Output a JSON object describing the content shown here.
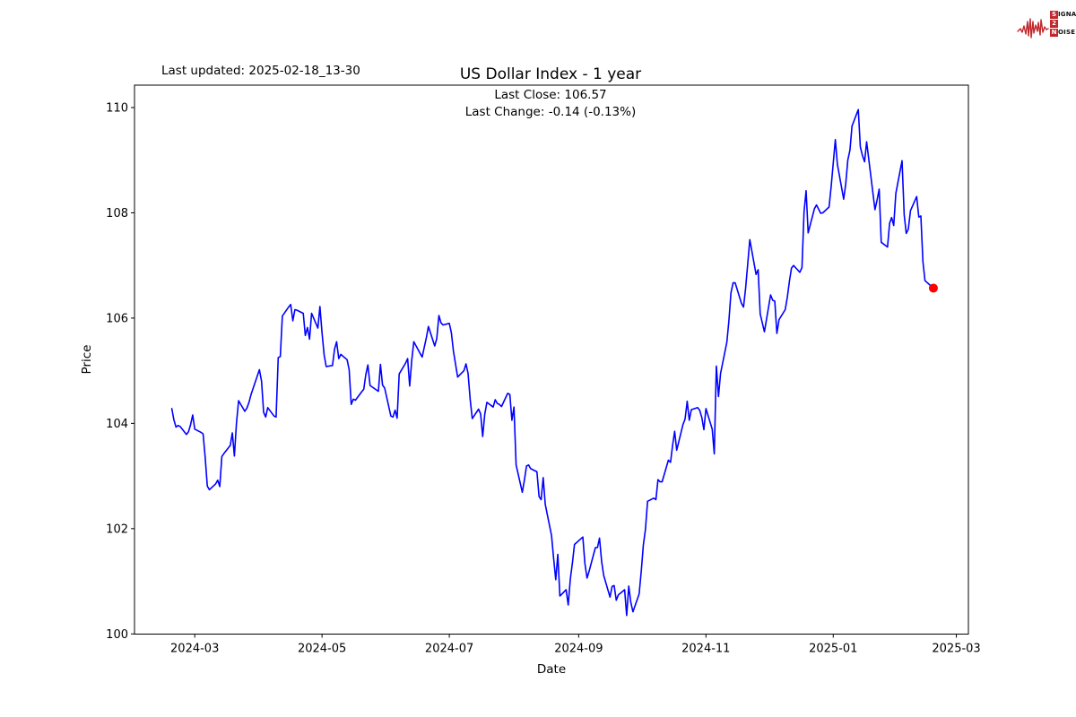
{
  "page": {
    "last_updated_label": "Last updated: 2025-02-18_13-30",
    "title": "US Dollar Index - 1 year",
    "subtitle_close": "Last Close: 106.57",
    "subtitle_change": "Last Change: -0.14 (-0.13%)"
  },
  "logo": {
    "s": "S",
    "ignal": "IGNAL",
    "two": "2",
    "n": "N",
    "oise": "OISE",
    "accent_color": "#c1272d"
  },
  "chart_data": {
    "type": "line",
    "title": "US Dollar Index - 1 year",
    "xlabel": "Date",
    "ylabel": "Price",
    "grid": false,
    "legend": "none",
    "line_color": "#0000ff",
    "last_point_color": "#ff0000",
    "axis_color": "#000000",
    "ylim": [
      100,
      110.43
    ],
    "yticks": [
      100,
      102,
      104,
      106,
      108,
      110
    ],
    "xticks": [
      {
        "label": "2024-03",
        "date": "2024-03-01"
      },
      {
        "label": "2024-05",
        "date": "2024-05-01"
      },
      {
        "label": "2024-07",
        "date": "2024-07-01"
      },
      {
        "label": "2024-09",
        "date": "2024-09-01"
      },
      {
        "label": "2024-11",
        "date": "2024-11-01"
      },
      {
        "label": "2025-01",
        "date": "2025-01-01"
      },
      {
        "label": "2025-03",
        "date": "2025-03-01"
      }
    ],
    "x_range": [
      "2024-02-19",
      "2025-02-18"
    ],
    "last_close": 106.57,
    "last_change": "-0.14 (-0.13%)",
    "series": [
      {
        "name": "US Dollar Index",
        "points": [
          [
            "2024-02-19",
            104.28
          ],
          [
            "2024-02-20",
            104.07
          ],
          [
            "2024-02-21",
            103.93
          ],
          [
            "2024-02-22",
            103.96
          ],
          [
            "2024-02-23",
            103.94
          ],
          [
            "2024-02-26",
            103.79
          ],
          [
            "2024-02-27",
            103.84
          ],
          [
            "2024-02-28",
            103.97
          ],
          [
            "2024-02-29",
            104.16
          ],
          [
            "2024-03-01",
            103.89
          ],
          [
            "2024-03-04",
            103.83
          ],
          [
            "2024-03-05",
            103.8
          ],
          [
            "2024-03-06",
            103.36
          ],
          [
            "2024-03-07",
            102.81
          ],
          [
            "2024-03-08",
            102.74
          ],
          [
            "2024-03-11",
            102.85
          ],
          [
            "2024-03-12",
            102.92
          ],
          [
            "2024-03-13",
            102.8
          ],
          [
            "2024-03-14",
            103.37
          ],
          [
            "2024-03-15",
            103.43
          ],
          [
            "2024-03-18",
            103.58
          ],
          [
            "2024-03-19",
            103.82
          ],
          [
            "2024-03-20",
            103.38
          ],
          [
            "2024-03-21",
            104.0
          ],
          [
            "2024-03-22",
            104.43
          ],
          [
            "2024-03-25",
            104.23
          ],
          [
            "2024-03-26",
            104.29
          ],
          [
            "2024-03-27",
            104.4
          ],
          [
            "2024-03-28",
            104.55
          ],
          [
            "2024-04-01",
            105.02
          ],
          [
            "2024-04-02",
            104.8
          ],
          [
            "2024-04-03",
            104.21
          ],
          [
            "2024-04-04",
            104.12
          ],
          [
            "2024-04-05",
            104.3
          ],
          [
            "2024-04-08",
            104.14
          ],
          [
            "2024-04-09",
            104.12
          ],
          [
            "2024-04-10",
            105.25
          ],
          [
            "2024-04-11",
            105.27
          ],
          [
            "2024-04-12",
            106.04
          ],
          [
            "2024-04-15",
            106.21
          ],
          [
            "2024-04-16",
            106.26
          ],
          [
            "2024-04-17",
            105.95
          ],
          [
            "2024-04-18",
            106.16
          ],
          [
            "2024-04-19",
            106.15
          ],
          [
            "2024-04-22",
            106.09
          ],
          [
            "2024-04-23",
            105.67
          ],
          [
            "2024-04-24",
            105.82
          ],
          [
            "2024-04-25",
            105.6
          ],
          [
            "2024-04-26",
            106.09
          ],
          [
            "2024-04-29",
            105.81
          ],
          [
            "2024-04-30",
            106.22
          ],
          [
            "2024-05-01",
            105.73
          ],
          [
            "2024-05-02",
            105.3
          ],
          [
            "2024-05-03",
            105.08
          ],
          [
            "2024-05-06",
            105.1
          ],
          [
            "2024-05-07",
            105.41
          ],
          [
            "2024-05-08",
            105.55
          ],
          [
            "2024-05-09",
            105.23
          ],
          [
            "2024-05-10",
            105.31
          ],
          [
            "2024-05-13",
            105.21
          ],
          [
            "2024-05-14",
            105.02
          ],
          [
            "2024-05-15",
            104.36
          ],
          [
            "2024-05-16",
            104.46
          ],
          [
            "2024-05-17",
            104.44
          ],
          [
            "2024-05-20",
            104.6
          ],
          [
            "2024-05-21",
            104.65
          ],
          [
            "2024-05-22",
            104.93
          ],
          [
            "2024-05-23",
            105.11
          ],
          [
            "2024-05-24",
            104.72
          ],
          [
            "2024-05-28",
            104.61
          ],
          [
            "2024-05-29",
            105.12
          ],
          [
            "2024-05-30",
            104.73
          ],
          [
            "2024-05-31",
            104.67
          ],
          [
            "2024-06-03",
            104.14
          ],
          [
            "2024-06-04",
            104.12
          ],
          [
            "2024-06-05",
            104.25
          ],
          [
            "2024-06-06",
            104.1
          ],
          [
            "2024-06-07",
            104.94
          ],
          [
            "2024-06-10",
            105.14
          ],
          [
            "2024-06-11",
            105.23
          ],
          [
            "2024-06-12",
            104.71
          ],
          [
            "2024-06-13",
            105.2
          ],
          [
            "2024-06-14",
            105.55
          ],
          [
            "2024-06-17",
            105.33
          ],
          [
            "2024-06-18",
            105.26
          ],
          [
            "2024-06-20",
            105.63
          ],
          [
            "2024-06-21",
            105.84
          ],
          [
            "2024-06-24",
            105.47
          ],
          [
            "2024-06-25",
            105.61
          ],
          [
            "2024-06-26",
            106.05
          ],
          [
            "2024-06-27",
            105.91
          ],
          [
            "2024-06-28",
            105.87
          ],
          [
            "2024-07-01",
            105.9
          ],
          [
            "2024-07-02",
            105.72
          ],
          [
            "2024-07-03",
            105.37
          ],
          [
            "2024-07-05",
            104.88
          ],
          [
            "2024-07-08",
            105.0
          ],
          [
            "2024-07-09",
            105.13
          ],
          [
            "2024-07-10",
            104.95
          ],
          [
            "2024-07-11",
            104.45
          ],
          [
            "2024-07-12",
            104.09
          ],
          [
            "2024-07-15",
            104.27
          ],
          [
            "2024-07-16",
            104.18
          ],
          [
            "2024-07-17",
            103.75
          ],
          [
            "2024-07-18",
            104.17
          ],
          [
            "2024-07-19",
            104.4
          ],
          [
            "2024-07-22",
            104.31
          ],
          [
            "2024-07-23",
            104.45
          ],
          [
            "2024-07-24",
            104.38
          ],
          [
            "2024-07-25",
            104.36
          ],
          [
            "2024-07-26",
            104.32
          ],
          [
            "2024-07-29",
            104.57
          ],
          [
            "2024-07-30",
            104.55
          ],
          [
            "2024-07-31",
            104.06
          ],
          [
            "2024-08-01",
            104.31
          ],
          [
            "2024-08-02",
            103.21
          ],
          [
            "2024-08-05",
            102.69
          ],
          [
            "2024-08-06",
            102.93
          ],
          [
            "2024-08-07",
            103.19
          ],
          [
            "2024-08-08",
            103.21
          ],
          [
            "2024-08-09",
            103.14
          ],
          [
            "2024-08-12",
            103.08
          ],
          [
            "2024-08-13",
            102.61
          ],
          [
            "2024-08-14",
            102.55
          ],
          [
            "2024-08-15",
            102.97
          ],
          [
            "2024-08-16",
            102.46
          ],
          [
            "2024-08-19",
            101.87
          ],
          [
            "2024-08-20",
            101.44
          ],
          [
            "2024-08-21",
            101.03
          ],
          [
            "2024-08-22",
            101.51
          ],
          [
            "2024-08-23",
            100.72
          ],
          [
            "2024-08-26",
            100.84
          ],
          [
            "2024-08-27",
            100.55
          ],
          [
            "2024-08-28",
            101.05
          ],
          [
            "2024-08-29",
            101.35
          ],
          [
            "2024-08-30",
            101.7
          ],
          [
            "2024-09-03",
            101.84
          ],
          [
            "2024-09-04",
            101.34
          ],
          [
            "2024-09-05",
            101.06
          ],
          [
            "2024-09-06",
            101.19
          ],
          [
            "2024-09-09",
            101.64
          ],
          [
            "2024-09-10",
            101.64
          ],
          [
            "2024-09-11",
            101.82
          ],
          [
            "2024-09-12",
            101.37
          ],
          [
            "2024-09-13",
            101.11
          ],
          [
            "2024-09-16",
            100.7
          ],
          [
            "2024-09-17",
            100.9
          ],
          [
            "2024-09-18",
            100.92
          ],
          [
            "2024-09-19",
            100.64
          ],
          [
            "2024-09-20",
            100.74
          ],
          [
            "2024-09-23",
            100.84
          ],
          [
            "2024-09-24",
            100.35
          ],
          [
            "2024-09-25",
            100.91
          ],
          [
            "2024-09-26",
            100.6
          ],
          [
            "2024-09-27",
            100.42
          ],
          [
            "2024-09-30",
            100.76
          ],
          [
            "2024-10-01",
            101.2
          ],
          [
            "2024-10-02",
            101.69
          ],
          [
            "2024-10-03",
            101.98
          ],
          [
            "2024-10-04",
            102.52
          ],
          [
            "2024-10-07",
            102.58
          ],
          [
            "2024-10-08",
            102.55
          ],
          [
            "2024-10-09",
            102.93
          ],
          [
            "2024-10-10",
            102.89
          ],
          [
            "2024-10-11",
            102.89
          ],
          [
            "2024-10-14",
            103.3
          ],
          [
            "2024-10-15",
            103.26
          ],
          [
            "2024-10-16",
            103.58
          ],
          [
            "2024-10-17",
            103.85
          ],
          [
            "2024-10-18",
            103.49
          ],
          [
            "2024-10-21",
            103.98
          ],
          [
            "2024-10-22",
            104.08
          ],
          [
            "2024-10-23",
            104.42
          ],
          [
            "2024-10-24",
            104.06
          ],
          [
            "2024-10-25",
            104.26
          ],
          [
            "2024-10-28",
            104.3
          ],
          [
            "2024-10-29",
            104.25
          ],
          [
            "2024-10-30",
            104.11
          ],
          [
            "2024-10-31",
            103.88
          ],
          [
            "2024-11-01",
            104.28
          ],
          [
            "2024-11-04",
            103.89
          ],
          [
            "2024-11-05",
            103.42
          ],
          [
            "2024-11-06",
            105.09
          ],
          [
            "2024-11-07",
            104.51
          ],
          [
            "2024-11-08",
            104.95
          ],
          [
            "2024-11-11",
            105.54
          ],
          [
            "2024-11-12",
            105.95
          ],
          [
            "2024-11-13",
            106.48
          ],
          [
            "2024-11-14",
            106.67
          ],
          [
            "2024-11-15",
            106.67
          ],
          [
            "2024-11-18",
            106.28
          ],
          [
            "2024-11-19",
            106.21
          ],
          [
            "2024-11-20",
            106.56
          ],
          [
            "2024-11-21",
            107.03
          ],
          [
            "2024-11-22",
            107.49
          ],
          [
            "2024-11-25",
            106.83
          ],
          [
            "2024-11-26",
            106.92
          ],
          [
            "2024-11-27",
            106.08
          ],
          [
            "2024-11-29",
            105.74
          ],
          [
            "2024-12-02",
            106.44
          ],
          [
            "2024-12-03",
            106.34
          ],
          [
            "2024-12-04",
            106.32
          ],
          [
            "2024-12-05",
            105.71
          ],
          [
            "2024-12-06",
            105.97
          ],
          [
            "2024-12-09",
            106.16
          ],
          [
            "2024-12-10",
            106.4
          ],
          [
            "2024-12-11",
            106.7
          ],
          [
            "2024-12-12",
            106.95
          ],
          [
            "2024-12-13",
            107.0
          ],
          [
            "2024-12-16",
            106.87
          ],
          [
            "2024-12-17",
            106.96
          ],
          [
            "2024-12-18",
            108.02
          ],
          [
            "2024-12-19",
            108.42
          ],
          [
            "2024-12-20",
            107.62
          ],
          [
            "2024-12-23",
            108.08
          ],
          [
            "2024-12-24",
            108.15
          ],
          [
            "2024-12-26",
            107.99
          ],
          [
            "2024-12-27",
            108.0
          ],
          [
            "2024-12-30",
            108.11
          ],
          [
            "2024-12-31",
            108.49
          ],
          [
            "2025-01-02",
            109.39
          ],
          [
            "2025-01-03",
            108.92
          ],
          [
            "2025-01-06",
            108.26
          ],
          [
            "2025-01-07",
            108.55
          ],
          [
            "2025-01-08",
            109.0
          ],
          [
            "2025-01-09",
            109.19
          ],
          [
            "2025-01-10",
            109.65
          ],
          [
            "2025-01-13",
            109.96
          ],
          [
            "2025-01-14",
            109.25
          ],
          [
            "2025-01-15",
            109.09
          ],
          [
            "2025-01-16",
            108.97
          ],
          [
            "2025-01-17",
            109.35
          ],
          [
            "2025-01-21",
            108.06
          ],
          [
            "2025-01-22",
            108.24
          ],
          [
            "2025-01-23",
            108.45
          ],
          [
            "2025-01-24",
            107.44
          ],
          [
            "2025-01-27",
            107.35
          ],
          [
            "2025-01-28",
            107.8
          ],
          [
            "2025-01-29",
            107.91
          ],
          [
            "2025-01-30",
            107.76
          ],
          [
            "2025-01-31",
            108.37
          ],
          [
            "2025-02-03",
            108.99
          ],
          [
            "2025-02-04",
            107.96
          ],
          [
            "2025-02-05",
            107.61
          ],
          [
            "2025-02-06",
            107.69
          ],
          [
            "2025-02-07",
            108.04
          ],
          [
            "2025-02-10",
            108.31
          ],
          [
            "2025-02-11",
            107.92
          ],
          [
            "2025-02-12",
            107.94
          ],
          [
            "2025-02-13",
            107.07
          ],
          [
            "2025-02-14",
            106.71
          ],
          [
            "2025-02-18",
            106.57
          ]
        ]
      }
    ]
  }
}
